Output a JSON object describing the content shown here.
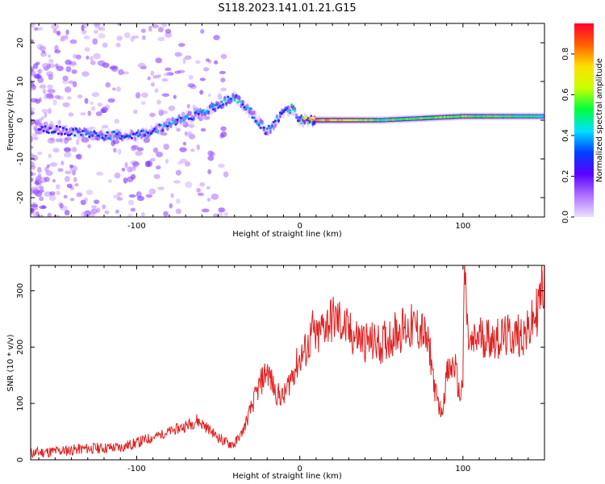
{
  "figure_title": "S118.2023.141.01.21.G15",
  "chart_data": [
    {
      "type": "heatmap",
      "xlabel": "Height of straight line (km)",
      "ylabel": "Frequency (Hz)",
      "xlim": [
        -165,
        150
      ],
      "ylim": [
        -25,
        25
      ],
      "x_ticks": [
        -100,
        0,
        100
      ],
      "y_ticks": [
        -20,
        -10,
        0,
        10,
        20
      ],
      "colorbar": {
        "label": "Normalized spectral amplitude",
        "range": [
          0,
          0.95
        ],
        "ticks": [
          0.0,
          0.2,
          0.4,
          0.6,
          0.8
        ],
        "tick_labels": [
          "0.0",
          "0.2",
          "0.4",
          "0.6",
          "0.8"
        ],
        "colormap": [
          "#e8e0ff",
          "#b070ff",
          "#5a00ff",
          "#0040ff",
          "#00e0ff",
          "#00ff40",
          "#c8ff00",
          "#ffe000",
          "#ff6000",
          "#ff0030"
        ]
      },
      "ridge": {
        "x": [
          -160,
          -140,
          -120,
          -100,
          -85,
          -75,
          -60,
          -50,
          -40,
          -30,
          -20,
          -10,
          -5,
          0,
          10,
          50,
          100,
          150
        ],
        "frequency": [
          -2,
          -3,
          -4,
          -4,
          -2,
          0,
          2,
          4,
          6,
          2,
          -3,
          2,
          3,
          0,
          0,
          0,
          1,
          1
        ],
        "amplitude": [
          0.25,
          0.3,
          0.35,
          0.3,
          0.35,
          0.35,
          0.35,
          0.4,
          0.45,
          0.35,
          0.35,
          0.35,
          0.45,
          0.4,
          0.9,
          0.55,
          0.6,
          0.5
        ]
      }
    },
    {
      "type": "line",
      "xlabel": "Height of straight line (km)",
      "ylabel": "SNR (10 * v/v)",
      "xlim": [
        -165,
        150
      ],
      "ylim": [
        0,
        345
      ],
      "x_ticks": [
        -100,
        0,
        100
      ],
      "y_ticks": [
        0,
        100,
        200,
        300
      ],
      "series": [
        {
          "color": "#e02020",
          "x": [
            -165,
            -150,
            -130,
            -110,
            -100,
            -90,
            -80,
            -70,
            -63,
            -58,
            -50,
            -45,
            -40,
            -35,
            -30,
            -25,
            -20,
            -15,
            -10,
            -5,
            0,
            5,
            8,
            10,
            15,
            20,
            25,
            30,
            40,
            50,
            60,
            70,
            75,
            80,
            83,
            87,
            90,
            95,
            98,
            100,
            101,
            103,
            105,
            110,
            120,
            130,
            140,
            145,
            150
          ],
          "y": [
            12,
            15,
            20,
            22,
            30,
            40,
            50,
            60,
            70,
            60,
            40,
            30,
            28,
            50,
            90,
            130,
            160,
            120,
            110,
            150,
            180,
            200,
            230,
            210,
            240,
            250,
            245,
            225,
            210,
            205,
            230,
            235,
            230,
            190,
            120,
            80,
            150,
            170,
            110,
            140,
            350,
            215,
            200,
            220,
            215,
            220,
            225,
            260,
            320
          ]
        }
      ]
    }
  ]
}
